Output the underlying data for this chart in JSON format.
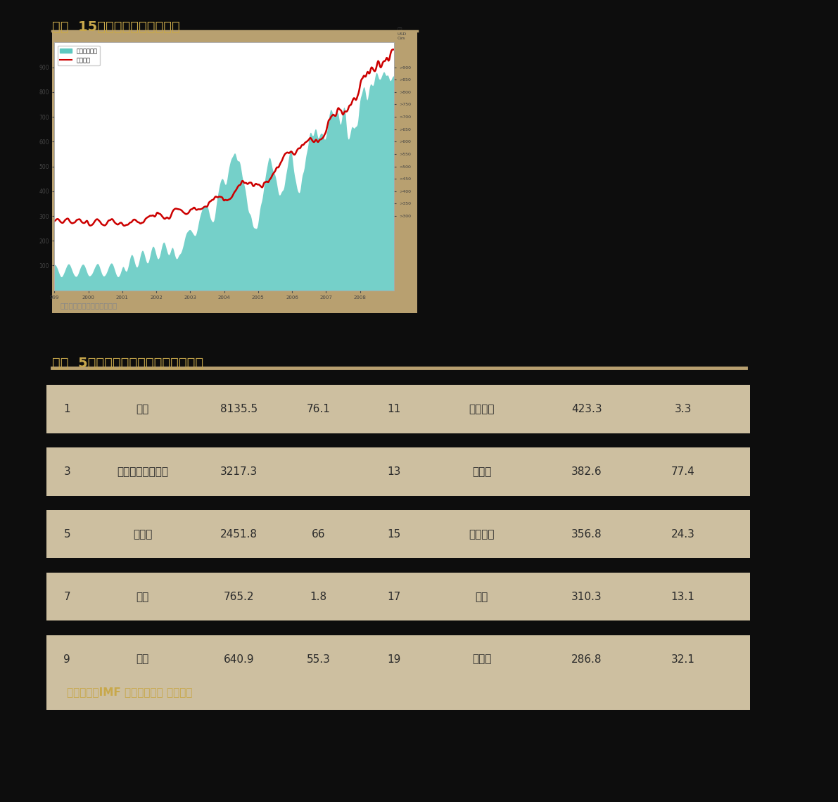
{
  "bg_color": "#0d0d0d",
  "title1": "图表  15：基金多头持仓与金价",
  "title2": "表格  5：世界主要经济体央行黄金储备",
  "title_color": "#c8a84b",
  "chart_frame_color": "#b8a070",
  "chart_inner_bg": "#ffffff",
  "chart_fill_color": "#5dc8c0",
  "chart_line_color": "#cc0000",
  "legend_fill": "基金多头持仓",
  "legend_line": "黄金价格",
  "source_text1": "数据来源：路透社，中证期货",
  "source_text1_color": "#888888",
  "row_bg_color": "#cdbfa0",
  "row_gap_color": "#111111",
  "footer_bg": "#cdbfa0",
  "footer_text": "数据来源：IMF 世界黄金协会 中证期货",
  "footer_text_color": "#c8a84b",
  "table_text_color": "#2a2a2a",
  "table_rows": [
    {
      "rank1": "1",
      "name1": "美国",
      "val1": "8135.5",
      "pct1": "76.1",
      "rank2": "11",
      "name2": "中国台湾",
      "val2": "423.3",
      "pct2": "3.3"
    },
    {
      "rank1": "3",
      "name1": "国际货币基金组织",
      "val1": "3217.3",
      "pct1": "",
      "rank2": "13",
      "name2": "葡萄牙",
      "val2": "382.6",
      "pct2": "77.4"
    },
    {
      "rank1": "5",
      "name1": "意大利",
      "val1": "2451.8",
      "pct1": "66",
      "rank2": "15",
      "name2": "委内瑞拉",
      "val2": "356.8",
      "pct2": "24.3"
    },
    {
      "rank1": "7",
      "name1": "日本",
      "val1": "765.2",
      "pct1": "1.8",
      "rank2": "17",
      "name2": "英国",
      "val2": "310.3",
      "pct2": "13.1"
    },
    {
      "rank1": "9",
      "name1": "荷兰",
      "val1": "640.9",
      "pct1": "55.3",
      "rank2": "19",
      "name2": "黎巴嫩",
      "val2": "286.8",
      "pct2": "32.1"
    }
  ]
}
